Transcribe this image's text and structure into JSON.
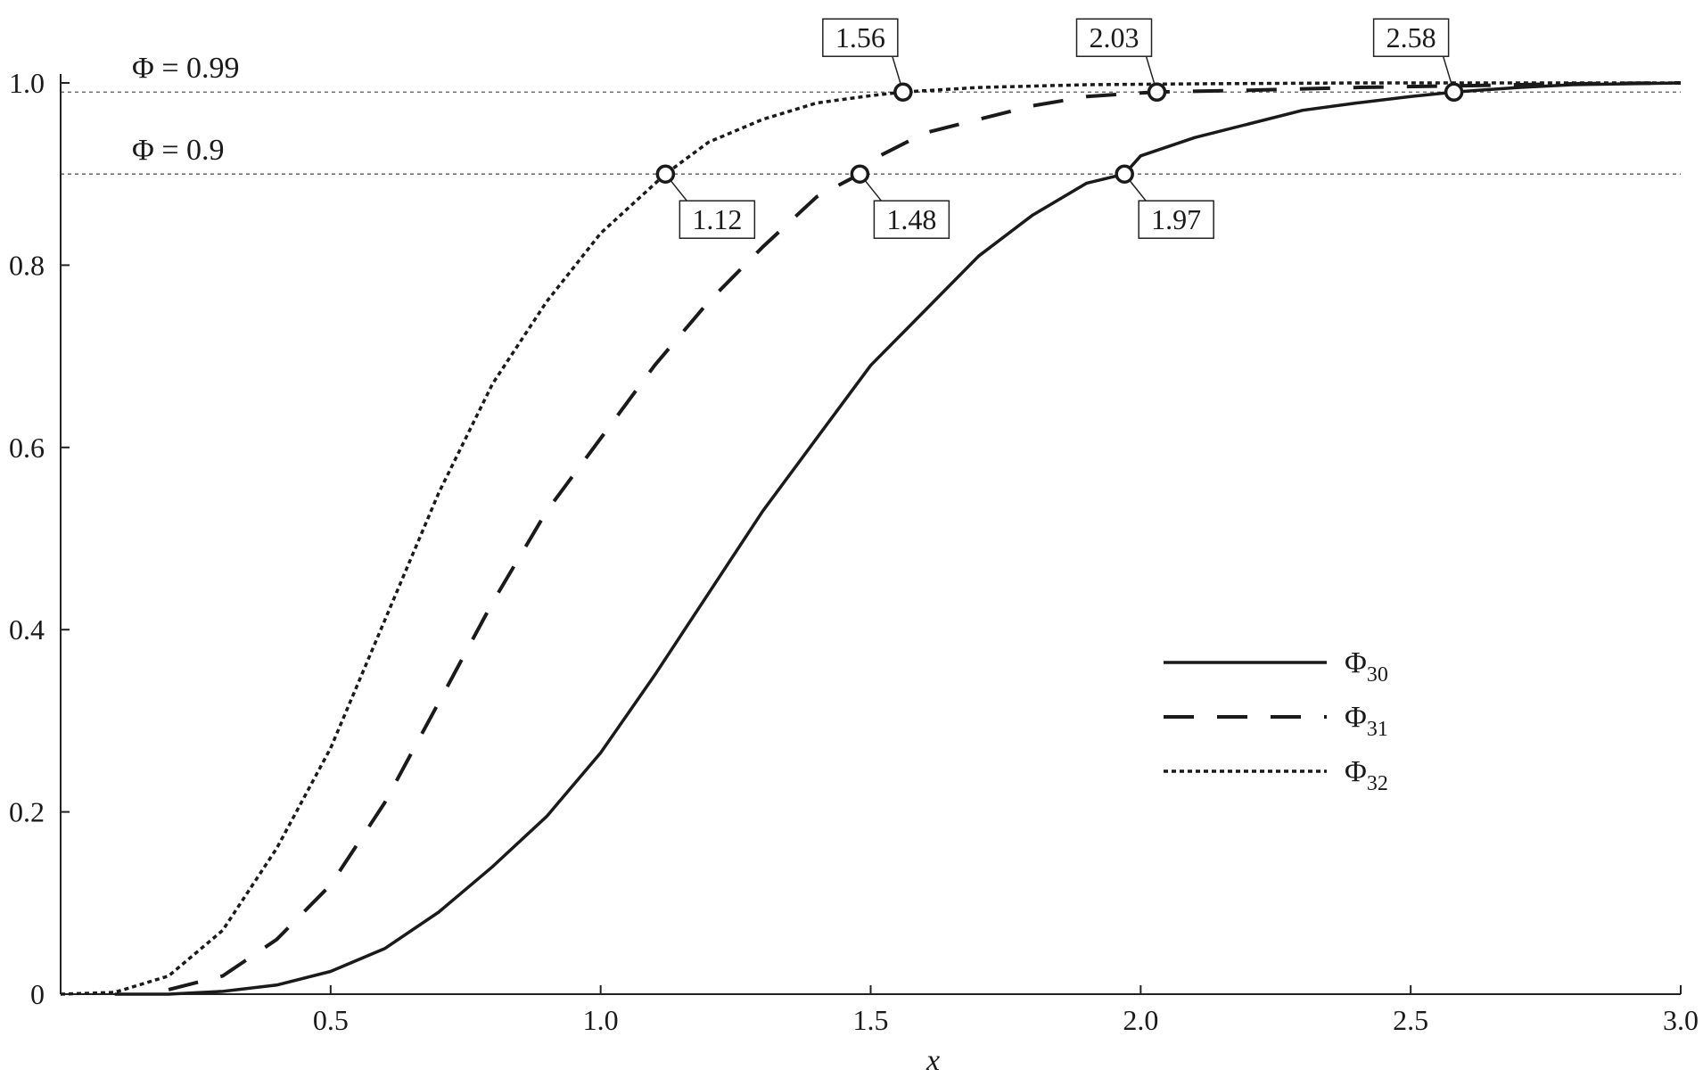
{
  "chart_data": {
    "type": "line",
    "xlabel": "x",
    "ylabel": "",
    "xlim": [
      0,
      3.0
    ],
    "ylim": [
      0,
      1.0
    ],
    "x_ticks": [
      0.5,
      1.0,
      1.5,
      2.0,
      2.5,
      3.0
    ],
    "x_tick_labels": [
      "0.5",
      "1.0",
      "1.5",
      "2.0",
      "2.5",
      "3.0"
    ],
    "y_ticks": [
      0,
      0.2,
      0.4,
      0.6,
      0.8,
      1.0
    ],
    "y_tick_labels": [
      "0",
      "0.2",
      "0.4",
      "0.6",
      "0.8",
      "1.0"
    ],
    "grid": false,
    "legend_position": "lower-right",
    "reference_lines": [
      {
        "y": 0.99,
        "label": "Φ = 0.99"
      },
      {
        "y": 0.9,
        "label": "Φ = 0.9"
      }
    ],
    "series": [
      {
        "name": "Φ30",
        "name_base": "Φ",
        "name_sub": "30",
        "style": "solid",
        "x": [
          0.1,
          0.2,
          0.3,
          0.4,
          0.5,
          0.6,
          0.7,
          0.8,
          0.9,
          1.0,
          1.1,
          1.2,
          1.3,
          1.4,
          1.5,
          1.6,
          1.7,
          1.8,
          1.9,
          1.97,
          2.0,
          2.1,
          2.2,
          2.3,
          2.4,
          2.5,
          2.58,
          2.7,
          2.8,
          2.9,
          3.0
        ],
        "y": [
          0.0,
          0.0,
          0.003,
          0.01,
          0.025,
          0.05,
          0.09,
          0.14,
          0.195,
          0.265,
          0.35,
          0.44,
          0.53,
          0.61,
          0.69,
          0.75,
          0.81,
          0.855,
          0.89,
          0.9,
          0.92,
          0.94,
          0.955,
          0.97,
          0.978,
          0.985,
          0.99,
          0.995,
          0.998,
          0.999,
          1.0
        ]
      },
      {
        "name": "Φ31",
        "name_base": "Φ",
        "name_sub": "31",
        "style": "dashed",
        "x": [
          0.2,
          0.3,
          0.4,
          0.5,
          0.6,
          0.7,
          0.8,
          0.9,
          1.0,
          1.1,
          1.2,
          1.3,
          1.4,
          1.48,
          1.5,
          1.6,
          1.7,
          1.8,
          1.9,
          2.0,
          2.03,
          2.2,
          2.4,
          2.6,
          2.8,
          3.0
        ],
        "y": [
          0.005,
          0.02,
          0.06,
          0.12,
          0.21,
          0.32,
          0.43,
          0.53,
          0.61,
          0.69,
          0.76,
          0.82,
          0.875,
          0.9,
          0.915,
          0.945,
          0.96,
          0.975,
          0.985,
          0.989,
          0.99,
          0.992,
          0.995,
          0.997,
          0.999,
          1.0
        ]
      },
      {
        "name": "Φ32",
        "name_base": "Φ",
        "name_sub": "32",
        "style": "dotted",
        "x": [
          0.0,
          0.1,
          0.2,
          0.3,
          0.4,
          0.5,
          0.6,
          0.7,
          0.8,
          0.9,
          1.0,
          1.12,
          1.2,
          1.3,
          1.4,
          1.5,
          1.56,
          1.7,
          1.9,
          2.1,
          2.4,
          2.7,
          3.0
        ],
        "y": [
          0.0,
          0.002,
          0.02,
          0.07,
          0.16,
          0.27,
          0.41,
          0.55,
          0.67,
          0.76,
          0.835,
          0.9,
          0.935,
          0.96,
          0.978,
          0.986,
          0.99,
          0.995,
          0.998,
          0.999,
          1.0,
          1.0,
          1.0
        ]
      }
    ],
    "annotations": [
      {
        "label": "1.56",
        "x": 1.56,
        "y": 0.99,
        "box": "above-left"
      },
      {
        "label": "2.03",
        "x": 2.03,
        "y": 0.99,
        "box": "above-left"
      },
      {
        "label": "2.58",
        "x": 2.58,
        "y": 0.99,
        "box": "above-left"
      },
      {
        "label": "1.12",
        "x": 1.12,
        "y": 0.9,
        "box": "below-right"
      },
      {
        "label": "1.48",
        "x": 1.48,
        "y": 0.9,
        "box": "below-right"
      },
      {
        "label": "1.97",
        "x": 1.97,
        "y": 0.9,
        "box": "below-right"
      }
    ]
  }
}
